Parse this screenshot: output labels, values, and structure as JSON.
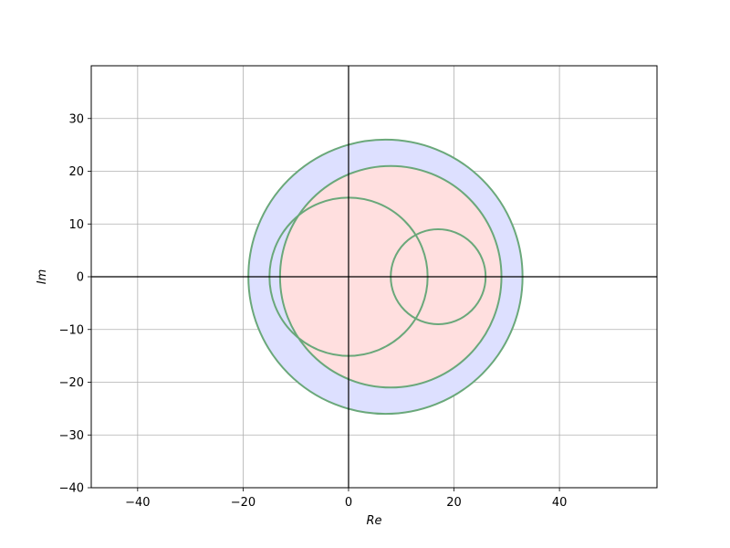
{
  "chart_data": {
    "type": "scatter",
    "title": "",
    "xlabel": "Re",
    "ylabel": "Im",
    "xlim": [
      -48.8,
      58.5
    ],
    "ylim": [
      -40,
      40
    ],
    "xticks": [
      -40,
      -20,
      0,
      20,
      40
    ],
    "yticks": [
      -40,
      -30,
      -20,
      -10,
      0,
      10,
      20,
      30
    ],
    "grid": true,
    "circles": [
      {
        "center": [
          7,
          0
        ],
        "radius": 26,
        "fill": "#dde0ff",
        "stroke": "#6aa87a"
      },
      {
        "center": [
          8,
          0
        ],
        "radius": 21,
        "fill": "#ffdfdf",
        "stroke": "#6aa87a"
      },
      {
        "center": [
          0,
          0
        ],
        "radius": 15,
        "fill": "none",
        "stroke": "#6aa87a"
      },
      {
        "center": [
          17,
          0
        ],
        "radius": 9,
        "fill": "none",
        "stroke": "#6aa87a"
      }
    ],
    "colors": {
      "outer_fill": "#dde0ff",
      "inner_fill": "#ffdfdf",
      "circle_stroke": "#6aa87a",
      "grid": "#b0b0b0",
      "axes": "#000000"
    }
  }
}
